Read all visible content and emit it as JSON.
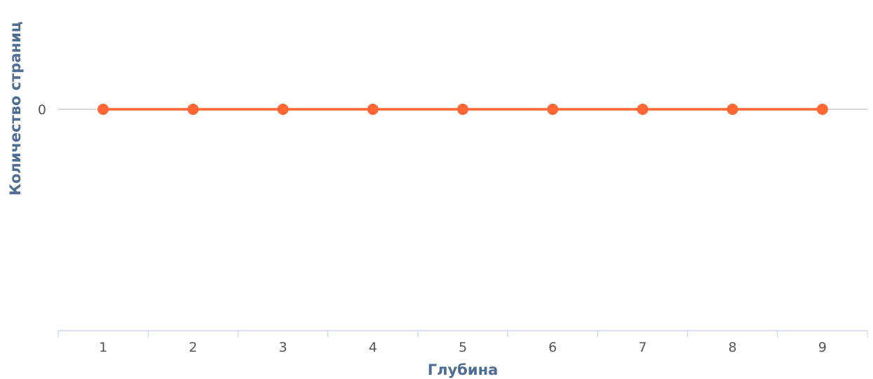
{
  "chart_data": {
    "type": "line",
    "x": [
      1,
      2,
      3,
      4,
      5,
      6,
      7,
      8,
      9
    ],
    "series": [
      {
        "values": [
          0,
          0,
          0,
          0,
          0,
          0,
          0,
          0,
          0
        ]
      }
    ],
    "xlabel": "Глубина",
    "ylabel": "Количество страниц",
    "x_tick_labels": [
      "1",
      "2",
      "3",
      "4",
      "5",
      "6",
      "7",
      "8",
      "9"
    ],
    "y_tick_labels": [
      "0"
    ],
    "grid": false,
    "legend": "none"
  },
  "colors": {
    "series": "#ff6633",
    "axis_title": "#4d6d94",
    "tick_label": "#555555",
    "zero_line": "#bfbfbf",
    "x_axis": "#ccd6eb"
  }
}
